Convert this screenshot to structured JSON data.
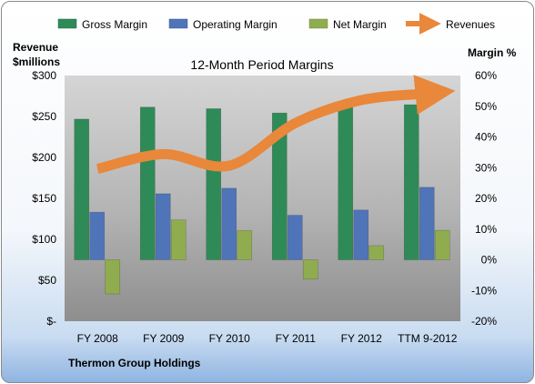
{
  "chart_data": {
    "type": "bar",
    "title": "12-Month Period Margins",
    "left_axis_label_line1": "Revenue",
    "left_axis_label_line2": "$millions",
    "right_axis_label": "Margin %",
    "footer": "Thermon Group Holdings",
    "categories": [
      "FY 2008",
      "FY 2009",
      "FY 2010",
      "FY 2011",
      "FY 2012",
      "TTM 9-2012"
    ],
    "left_axis": {
      "ylim": [
        0,
        300
      ],
      "ticks": [
        0,
        50,
        100,
        150,
        200,
        250,
        300
      ],
      "tick_labels": [
        "$-",
        "$50",
        "$100",
        "$150",
        "$200",
        "$250",
        "$300"
      ]
    },
    "right_axis": {
      "ylim": [
        -20,
        60
      ],
      "ticks": [
        -20,
        -10,
        0,
        10,
        20,
        30,
        40,
        50,
        60
      ],
      "tick_labels": [
        "-20%",
        "-10%",
        "0%",
        "10%",
        "20%",
        "30%",
        "40%",
        "50%",
        "60%"
      ]
    },
    "series": [
      {
        "name": "Gross Margin",
        "axis": "right",
        "color": "#2e8b57",
        "values": [
          45.8,
          49.7,
          49.2,
          47.8,
          49.6,
          50.5
        ]
      },
      {
        "name": "Operating Margin",
        "axis": "right",
        "color": "#4f74b8",
        "values": [
          15.5,
          21.5,
          23.3,
          14.5,
          16.2,
          23.6
        ]
      },
      {
        "name": "Net Margin",
        "axis": "right",
        "color": "#8fad4f",
        "values": [
          -11.1,
          13.0,
          9.5,
          -6.3,
          4.6,
          9.6
        ]
      }
    ],
    "revenues": {
      "name": "Revenues",
      "axis": "left",
      "color": "#e9873a",
      "values": [
        186,
        204,
        190,
        242,
        270,
        278
      ]
    },
    "legend_position": "top",
    "grid": false
  }
}
